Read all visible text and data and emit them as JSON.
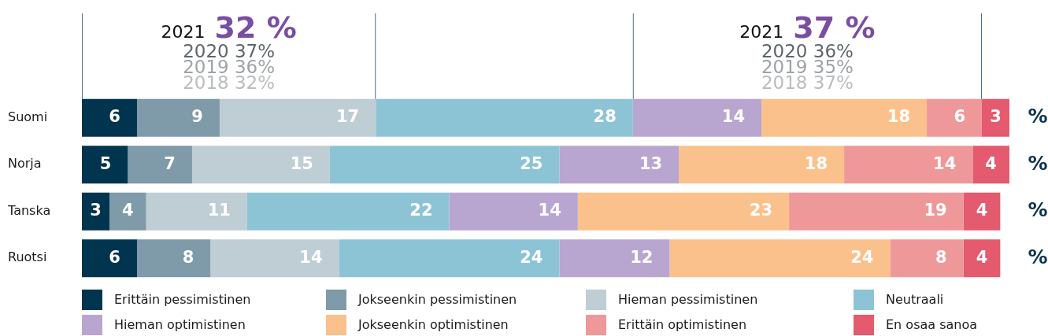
{
  "chart_data": {
    "type": "bar",
    "orientation": "horizontal",
    "stacked": true,
    "categories": [
      "Suomi",
      "Norja",
      "Tanska",
      "Ruotsi"
    ],
    "series": [
      {
        "name": "Erittäin pessimistinen",
        "color": "#00344f",
        "values": [
          6,
          5,
          3,
          6
        ]
      },
      {
        "name": "Jokseenkin pessimistinen",
        "color": "#7f9aa8",
        "values": [
          9,
          7,
          4,
          8
        ]
      },
      {
        "name": "Hieman pessimistinen",
        "color": "#bfcdd4",
        "values": [
          17,
          15,
          11,
          14
        ]
      },
      {
        "name": "Neutraali",
        "color": "#8cc4d6",
        "values": [
          28,
          25,
          22,
          24
        ]
      },
      {
        "name": "Hieman optimistinen",
        "color": "#b8a6d0",
        "values": [
          14,
          13,
          14,
          12
        ]
      },
      {
        "name": "Jokseenkin optimistinen",
        "color": "#fbc18c",
        "values": [
          18,
          18,
          23,
          24
        ]
      },
      {
        "name": "Erittäin optimistinen",
        "color": "#ef989a",
        "values": [
          6,
          14,
          19,
          8
        ]
      },
      {
        "name": "En osaa sanoa",
        "color": "#e45a6e",
        "values": [
          3,
          4,
          4,
          4
        ]
      }
    ],
    "xlim": [
      0,
      101
    ],
    "tick_labels": "y",
    "data_labels": true,
    "legend": "bottom",
    "xlabel": "%",
    "annotations": [
      "2021 32 %",
      "2020 37%",
      "2019 36%",
      "2018 32%",
      "2021 37 %",
      "2020 36%",
      "2019 35%",
      "2018 37%"
    ]
  }
}
